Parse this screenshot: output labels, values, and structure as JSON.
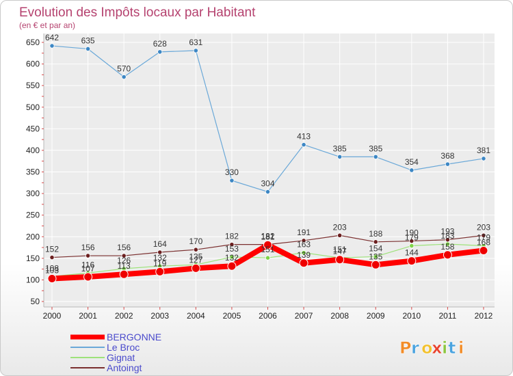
{
  "title": "Evolution des Impôts locaux par Habitant",
  "subtitle": "(en € et par an)",
  "brand": "Proxiti",
  "chart_data": {
    "type": "line",
    "x": [
      2000,
      2001,
      2002,
      2003,
      2004,
      2005,
      2006,
      2007,
      2008,
      2009,
      2010,
      2011,
      2012
    ],
    "ylim": [
      50,
      650
    ],
    "yticks": [
      50,
      100,
      150,
      200,
      250,
      300,
      350,
      400,
      450,
      500,
      550,
      600,
      650
    ],
    "grid": true,
    "legend_position": "bottom-left",
    "series": [
      {
        "name": "Le Broc",
        "color": "#6aa8d8",
        "marker": "#3d87c4",
        "width": 1.2,
        "values": [
          642,
          635,
          570,
          628,
          631,
          330,
          304,
          413,
          385,
          385,
          354,
          368,
          381
        ]
      },
      {
        "name": "Gignat",
        "color": "#9de27a",
        "marker": "#7ed348",
        "width": 1.2,
        "values": [
          108,
          116,
          126,
          132,
          135,
          153,
          151,
          163,
          151,
          154,
          179,
          183,
          179
        ]
      },
      {
        "name": "Antoingt",
        "color": "#7a2e2e",
        "marker": "#6b1f1f",
        "width": 1.2,
        "values": [
          152,
          156,
          156,
          164,
          170,
          182,
          182,
          191,
          203,
          188,
          190,
          193,
          203
        ]
      },
      {
        "name": "BERGONNE",
        "color": "#ff0000",
        "marker": "#ee0000",
        "width": 8,
        "values": [
          103,
          107,
          113,
          119,
          127,
          132,
          181,
          139,
          147,
          135,
          144,
          158,
          168
        ]
      }
    ]
  }
}
